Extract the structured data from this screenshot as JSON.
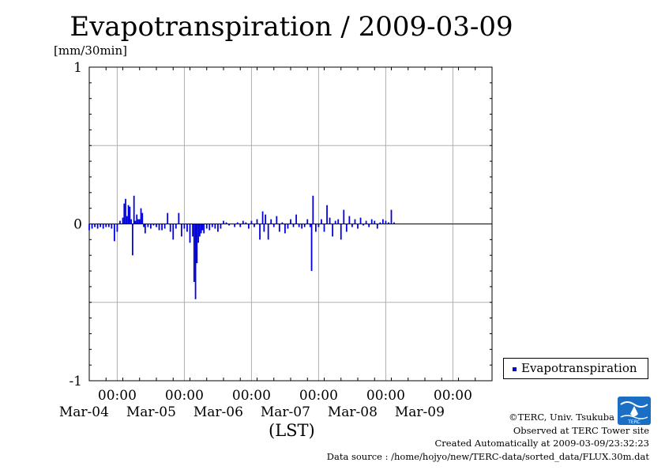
{
  "chart_data": {
    "type": "bar",
    "title": "Evapotranspiration / 2009-03-09",
    "ylabel": "[mm/30min]",
    "xlabel": "(LST)",
    "ylim": [
      -1,
      1
    ],
    "yticks": [
      -1,
      0,
      1
    ],
    "ytick_labels": [
      "-1",
      "0",
      "1"
    ],
    "xlim": [
      "2009-03-03 14:00",
      "2009-03-09 14:00"
    ],
    "xticks": [
      {
        "time": "00:00",
        "date": "Mar-04",
        "x": "2009-03-04 00:00"
      },
      {
        "time": "00:00",
        "date": "Mar-05",
        "x": "2009-03-05 00:00"
      },
      {
        "time": "00:00",
        "date": "Mar-06",
        "x": "2009-03-06 00:00"
      },
      {
        "time": "00:00",
        "date": "Mar-07",
        "x": "2009-03-07 00:00"
      },
      {
        "time": "00:00",
        "date": "Mar-08",
        "x": "2009-03-08 00:00"
      },
      {
        "time": "00:00",
        "date": "Mar-09",
        "x": "2009-03-09 00:00"
      }
    ],
    "grid": true,
    "legend_position": "bottom-right",
    "series": [
      {
        "name": "Evapotranspiration",
        "color": "#0000dd",
        "points": [
          [
            "2009-03-03 14:00",
            -0.04
          ],
          [
            "2009-03-03 15:00",
            -0.03
          ],
          [
            "2009-03-03 16:00",
            -0.02
          ],
          [
            "2009-03-03 17:00",
            -0.03
          ],
          [
            "2009-03-03 18:00",
            -0.02
          ],
          [
            "2009-03-03 19:00",
            -0.03
          ],
          [
            "2009-03-03 20:00",
            -0.02
          ],
          [
            "2009-03-03 21:00",
            -0.02
          ],
          [
            "2009-03-03 22:00",
            -0.03
          ],
          [
            "2009-03-03 23:00",
            -0.11
          ],
          [
            "2009-03-04 00:00",
            -0.05
          ],
          [
            "2009-03-04 01:00",
            0.02
          ],
          [
            "2009-03-04 02:00",
            0.04
          ],
          [
            "2009-03-04 02:30",
            0.13
          ],
          [
            "2009-03-04 03:00",
            0.16
          ],
          [
            "2009-03-04 03:30",
            0.05
          ],
          [
            "2009-03-04 04:00",
            0.12
          ],
          [
            "2009-03-04 04:30",
            0.11
          ],
          [
            "2009-03-04 05:00",
            0.03
          ],
          [
            "2009-03-04 05:30",
            -0.2
          ],
          [
            "2009-03-04 06:00",
            0.18
          ],
          [
            "2009-03-04 06:30",
            0.02
          ],
          [
            "2009-03-04 07:00",
            0.06
          ],
          [
            "2009-03-04 07:30",
            0.03
          ],
          [
            "2009-03-04 08:00",
            0.03
          ],
          [
            "2009-03-04 08:30",
            0.1
          ],
          [
            "2009-03-04 09:00",
            0.07
          ],
          [
            "2009-03-04 09:30",
            -0.02
          ],
          [
            "2009-03-04 10:00",
            -0.06
          ],
          [
            "2009-03-04 11:00",
            -0.02
          ],
          [
            "2009-03-04 12:00",
            -0.03
          ],
          [
            "2009-03-04 13:00",
            -0.01
          ],
          [
            "2009-03-04 14:00",
            -0.02
          ],
          [
            "2009-03-04 15:00",
            -0.04
          ],
          [
            "2009-03-04 16:00",
            -0.04
          ],
          [
            "2009-03-04 17:00",
            -0.03
          ],
          [
            "2009-03-04 18:00",
            0.07
          ],
          [
            "2009-03-04 19:00",
            -0.05
          ],
          [
            "2009-03-04 20:00",
            -0.1
          ],
          [
            "2009-03-04 21:00",
            -0.03
          ],
          [
            "2009-03-04 22:00",
            0.07
          ],
          [
            "2009-03-04 23:00",
            -0.08
          ],
          [
            "2009-03-05 00:00",
            -0.03
          ],
          [
            "2009-03-05 01:00",
            -0.05
          ],
          [
            "2009-03-05 02:00",
            -0.12
          ],
          [
            "2009-03-05 03:00",
            -0.08
          ],
          [
            "2009-03-05 03:30",
            -0.37
          ],
          [
            "2009-03-05 04:00",
            -0.48
          ],
          [
            "2009-03-05 04:30",
            -0.25
          ],
          [
            "2009-03-05 05:00",
            -0.12
          ],
          [
            "2009-03-05 05:30",
            -0.08
          ],
          [
            "2009-03-05 06:00",
            -0.06
          ],
          [
            "2009-03-05 06:30",
            -0.04
          ],
          [
            "2009-03-05 07:00",
            -0.06
          ],
          [
            "2009-03-05 08:00",
            -0.03
          ],
          [
            "2009-03-05 09:00",
            -0.04
          ],
          [
            "2009-03-05 10:00",
            -0.02
          ],
          [
            "2009-03-05 11:00",
            -0.03
          ],
          [
            "2009-03-05 12:00",
            -0.05
          ],
          [
            "2009-03-05 13:00",
            -0.03
          ],
          [
            "2009-03-05 14:00",
            0.02
          ],
          [
            "2009-03-05 15:00",
            0.01
          ],
          [
            "2009-03-05 16:00",
            -0.01
          ],
          [
            "2009-03-05 18:00",
            -0.02
          ],
          [
            "2009-03-05 19:00",
            0.01
          ],
          [
            "2009-03-05 20:00",
            -0.02
          ],
          [
            "2009-03-05 21:00",
            0.02
          ],
          [
            "2009-03-05 22:00",
            0.01
          ],
          [
            "2009-03-05 23:00",
            -0.03
          ],
          [
            "2009-03-06 00:00",
            0.02
          ],
          [
            "2009-03-06 01:00",
            -0.02
          ],
          [
            "2009-03-06 02:00",
            0.03
          ],
          [
            "2009-03-06 03:00",
            -0.1
          ],
          [
            "2009-03-06 04:00",
            0.08
          ],
          [
            "2009-03-06 04:30",
            -0.05
          ],
          [
            "2009-03-06 05:00",
            0.06
          ],
          [
            "2009-03-06 06:00",
            -0.1
          ],
          [
            "2009-03-06 07:00",
            0.03
          ],
          [
            "2009-03-06 08:00",
            -0.02
          ],
          [
            "2009-03-06 09:00",
            0.05
          ],
          [
            "2009-03-06 10:00",
            -0.05
          ],
          [
            "2009-03-06 11:00",
            0.01
          ],
          [
            "2009-03-06 12:00",
            -0.06
          ],
          [
            "2009-03-06 13:00",
            -0.03
          ],
          [
            "2009-03-06 14:00",
            0.03
          ],
          [
            "2009-03-06 15:00",
            -0.02
          ],
          [
            "2009-03-06 16:00",
            0.06
          ],
          [
            "2009-03-06 17:00",
            -0.02
          ],
          [
            "2009-03-06 18:00",
            -0.03
          ],
          [
            "2009-03-06 19:00",
            -0.02
          ],
          [
            "2009-03-06 20:00",
            0.03
          ],
          [
            "2009-03-06 21:00",
            -0.02
          ],
          [
            "2009-03-06 21:30",
            -0.3
          ],
          [
            "2009-03-06 22:00",
            0.18
          ],
          [
            "2009-03-06 23:00",
            -0.05
          ],
          [
            "2009-03-07 00:00",
            -0.02
          ],
          [
            "2009-03-07 01:00",
            0.03
          ],
          [
            "2009-03-07 02:00",
            -0.05
          ],
          [
            "2009-03-07 03:00",
            0.12
          ],
          [
            "2009-03-07 04:00",
            0.04
          ],
          [
            "2009-03-07 05:00",
            -0.08
          ],
          [
            "2009-03-07 06:00",
            0.02
          ],
          [
            "2009-03-07 07:00",
            0.03
          ],
          [
            "2009-03-07 08:00",
            -0.1
          ],
          [
            "2009-03-07 09:00",
            0.09
          ],
          [
            "2009-03-07 10:00",
            -0.05
          ],
          [
            "2009-03-07 11:00",
            0.05
          ],
          [
            "2009-03-07 12:00",
            -0.02
          ],
          [
            "2009-03-07 13:00",
            0.03
          ],
          [
            "2009-03-07 14:00",
            -0.03
          ],
          [
            "2009-03-07 15:00",
            0.04
          ],
          [
            "2009-03-07 16:00",
            -0.01
          ],
          [
            "2009-03-07 17:00",
            0.02
          ],
          [
            "2009-03-07 18:00",
            -0.02
          ],
          [
            "2009-03-07 19:00",
            0.03
          ],
          [
            "2009-03-07 20:00",
            0.02
          ],
          [
            "2009-03-07 21:00",
            -0.03
          ],
          [
            "2009-03-07 22:00",
            0.01
          ],
          [
            "2009-03-07 23:00",
            0.03
          ],
          [
            "2009-03-08 00:00",
            0.02
          ],
          [
            "2009-03-08 01:00",
            0.01
          ],
          [
            "2009-03-08 02:00",
            0.09
          ],
          [
            "2009-03-08 03:00",
            0.01
          ]
        ]
      }
    ]
  },
  "footer": {
    "copyright": "©TERC, Univ. Tsukuba",
    "observed": "Observed at TERC Tower site",
    "created": "Created Automatically at 2009-03-09/23:32:23",
    "source": "Data source : /home/hojyo/new/TERC-data/sorted_data/FLUX.30m.dat"
  },
  "logo": {
    "text": "TERC",
    "color": "#1a6fc4"
  }
}
